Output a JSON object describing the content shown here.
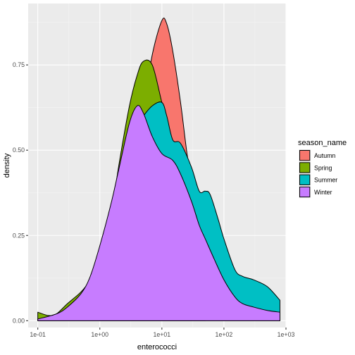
{
  "chart_data": {
    "type": "area",
    "title": "",
    "xlabel": "enterococci",
    "ylabel": "density",
    "x_scale": "log10",
    "xlim": [
      0.07,
      1000
    ],
    "ylim": [
      -0.02,
      0.93
    ],
    "x_ticks": [
      {
        "value": 0.1,
        "label": "1e-01"
      },
      {
        "value": 1,
        "label": "1e+00"
      },
      {
        "value": 10,
        "label": "1e+01"
      },
      {
        "value": 100,
        "label": "1e+02"
      },
      {
        "value": 1000,
        "label": "1e+03"
      }
    ],
    "y_ticks": [
      {
        "value": 0.0,
        "label": "0.00"
      },
      {
        "value": 0.25,
        "label": "0.25"
      },
      {
        "value": 0.5,
        "label": "0.50"
      },
      {
        "value": 0.75,
        "label": "0.75"
      }
    ],
    "grid": true,
    "legend": {
      "title": "season_name",
      "position": "right"
    },
    "series": [
      {
        "name": "Autumn",
        "color": "#F8766D",
        "x": [
          1,
          2,
          3,
          5,
          7,
          10,
          12,
          15,
          20,
          25,
          30,
          40,
          50
        ],
        "y": [
          0.0,
          0.25,
          0.4,
          0.62,
          0.78,
          0.88,
          0.87,
          0.79,
          0.64,
          0.5,
          0.41,
          0.33,
          0.33
        ]
      },
      {
        "name": "Spring",
        "color": "#7CAE00",
        "x": [
          0.1,
          0.15,
          0.2,
          0.3,
          0.5,
          0.7,
          1,
          1.5,
          2,
          3,
          4,
          5,
          7,
          10,
          15,
          20,
          30
        ],
        "y": [
          0.025,
          0.015,
          0.02,
          0.05,
          0.085,
          0.12,
          0.18,
          0.3,
          0.45,
          0.63,
          0.72,
          0.76,
          0.75,
          0.64,
          0.52,
          0.46,
          0.4
        ]
      },
      {
        "name": "Summer",
        "color": "#00BFC4",
        "x": [
          1,
          2,
          3,
          5,
          7,
          10,
          12,
          15,
          20,
          30,
          40,
          50,
          60,
          80,
          100,
          150,
          200,
          300,
          500,
          800
        ],
        "y": [
          0.18,
          0.42,
          0.55,
          0.6,
          0.63,
          0.64,
          0.6,
          0.53,
          0.52,
          0.45,
          0.38,
          0.38,
          0.37,
          0.3,
          0.24,
          0.15,
          0.13,
          0.12,
          0.1,
          0.06
        ]
      },
      {
        "name": "Winter",
        "color": "#C77CFF",
        "x": [
          0.1,
          0.2,
          0.3,
          0.5,
          0.7,
          1,
          1.5,
          2,
          3,
          4,
          5,
          7,
          10,
          15,
          20,
          30,
          40,
          50,
          70,
          100,
          150,
          200,
          300,
          500,
          800
        ],
        "y": [
          0.005,
          0.02,
          0.04,
          0.08,
          0.13,
          0.22,
          0.34,
          0.44,
          0.58,
          0.63,
          0.61,
          0.54,
          0.49,
          0.47,
          0.43,
          0.35,
          0.28,
          0.24,
          0.18,
          0.12,
          0.07,
          0.05,
          0.04,
          0.03,
          0.025
        ]
      }
    ]
  }
}
